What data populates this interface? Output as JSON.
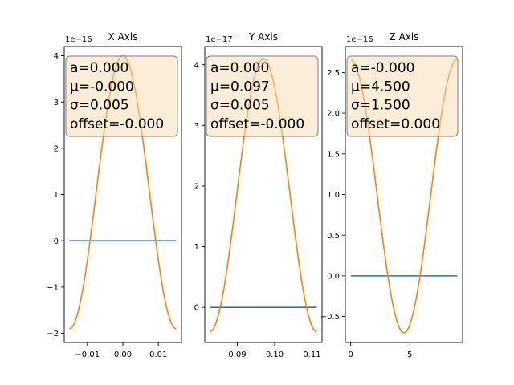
{
  "colors": {
    "data_line": "#1f77b4",
    "fit_line": "#ff7f0e",
    "box_fill": "#f5deb3",
    "box_edge": "#7f7f7f"
  },
  "chart_data": [
    {
      "type": "line",
      "title": "X Axis",
      "offset_text": "1e−16",
      "xlim": [
        -0.0165,
        0.0165
      ],
      "ylim": [
        -2.2,
        4.2
      ],
      "xticks": [
        -0.01,
        0.0,
        0.01
      ],
      "xtick_labels": [
        "−0.01",
        "0.00",
        "0.01"
      ],
      "yticks": [
        -2,
        -1,
        0,
        1,
        2,
        3,
        4
      ],
      "ytick_labels": [
        "−2",
        "−1",
        "0",
        "1",
        "2",
        "3",
        "4"
      ],
      "series": [
        {
          "role": "data",
          "x": [
            -0.015,
            0.015
          ],
          "y": [
            0,
            0
          ]
        },
        {
          "role": "fit",
          "model": "cosine",
          "x_range": [
            -0.015,
            0.015
          ],
          "amplitude": 2.95,
          "baseline": 1.05,
          "center": 0.0,
          "half_period": 0.015
        }
      ],
      "annotation": [
        "a=0.000",
        "μ=-0.000",
        "σ=0.005",
        "offset=-0.000"
      ]
    },
    {
      "type": "line",
      "title": "Y Axis",
      "offset_text": "1e−17",
      "xlim": [
        0.0813,
        0.1127
      ],
      "ylim": [
        -0.58,
        4.3
      ],
      "xticks": [
        0.09,
        0.1,
        0.11
      ],
      "xtick_labels": [
        "0.09",
        "0.10",
        "0.11"
      ],
      "yticks": [
        0,
        1,
        2,
        3,
        4
      ],
      "ytick_labels": [
        "0",
        "1",
        "2",
        "3",
        "4"
      ],
      "series": [
        {
          "role": "data",
          "x": [
            0.0827,
            0.1113
          ],
          "y": [
            0,
            0
          ]
        },
        {
          "role": "fit",
          "model": "cosine",
          "x_range": [
            0.0827,
            0.1113
          ],
          "amplitude": 2.25,
          "baseline": 1.85,
          "center": 0.097,
          "half_period": 0.0143
        }
      ],
      "annotation": [
        "a=0.000",
        "μ=0.097",
        "σ=0.005",
        "offset=-0.000"
      ]
    },
    {
      "type": "line",
      "title": "Z Axis",
      "offset_text": "1e−16",
      "xlim": [
        -0.45,
        9.45
      ],
      "ylim": [
        -0.82,
        2.82
      ],
      "xticks": [
        0,
        5
      ],
      "xtick_labels": [
        "0",
        "5"
      ],
      "yticks": [
        -0.5,
        0.0,
        0.5,
        1.0,
        1.5,
        2.0,
        2.5
      ],
      "ytick_labels": [
        "−0.5",
        "0.0",
        "0.5",
        "1.0",
        "1.5",
        "2.0",
        "2.5"
      ],
      "series": [
        {
          "role": "data",
          "x": [
            0,
            9
          ],
          "y": [
            0,
            0
          ]
        },
        {
          "role": "fit",
          "model": "cosine",
          "x_range": [
            0,
            9
          ],
          "amplitude": -1.68,
          "baseline": 0.98,
          "center": 4.5,
          "half_period": 4.5
        }
      ],
      "annotation": [
        "a=-0.000",
        "μ=4.500",
        "σ=1.500",
        "offset=0.000"
      ]
    }
  ]
}
